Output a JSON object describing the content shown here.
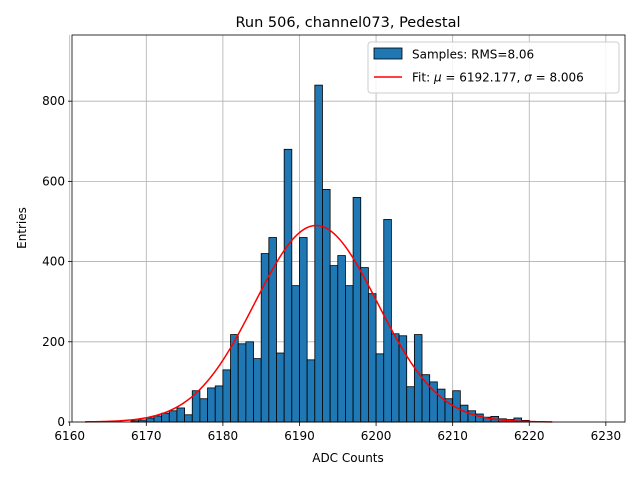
{
  "chart_data": {
    "type": "bar",
    "title": "Run 506, channel073, Pedestal",
    "xlabel": "ADC Counts",
    "ylabel": "Entries",
    "xlim": [
      6160.3,
      6232.5
    ],
    "ylim": [
      0,
      965
    ],
    "grid": true,
    "legend_position": "upper-right",
    "xticks": [
      6160,
      6170,
      6180,
      6190,
      6200,
      6210,
      6220,
      6230
    ],
    "yticks": [
      0,
      200,
      400,
      600,
      800
    ],
    "histogram": {
      "name": "Samples: RMS=8.06",
      "color": "#1f77b4",
      "bin_width": 1,
      "bin_start": 6168,
      "values": [
        3,
        5,
        10,
        15,
        22,
        28,
        35,
        18,
        78,
        58,
        85,
        90,
        130,
        218,
        195,
        200,
        158,
        420,
        460,
        172,
        680,
        340,
        460,
        155,
        840,
        580,
        390,
        415,
        340,
        560,
        385,
        320,
        170,
        505,
        220,
        215,
        88,
        218,
        118,
        100,
        82,
        58,
        78,
        42,
        28,
        20,
        12,
        14,
        8,
        6,
        10,
        4
      ]
    },
    "fit": {
      "name_prefix": "Fit: ",
      "mu_symbol": "μ",
      "mu_value": " = 6192.177, ",
      "sigma_symbol": "σ",
      "sigma_value": " = 8.006",
      "mu": 6192.177,
      "sigma": 8.006,
      "amplitude": 490,
      "x_range": [
        6162,
        6223
      ],
      "color": "#ff0000"
    }
  }
}
